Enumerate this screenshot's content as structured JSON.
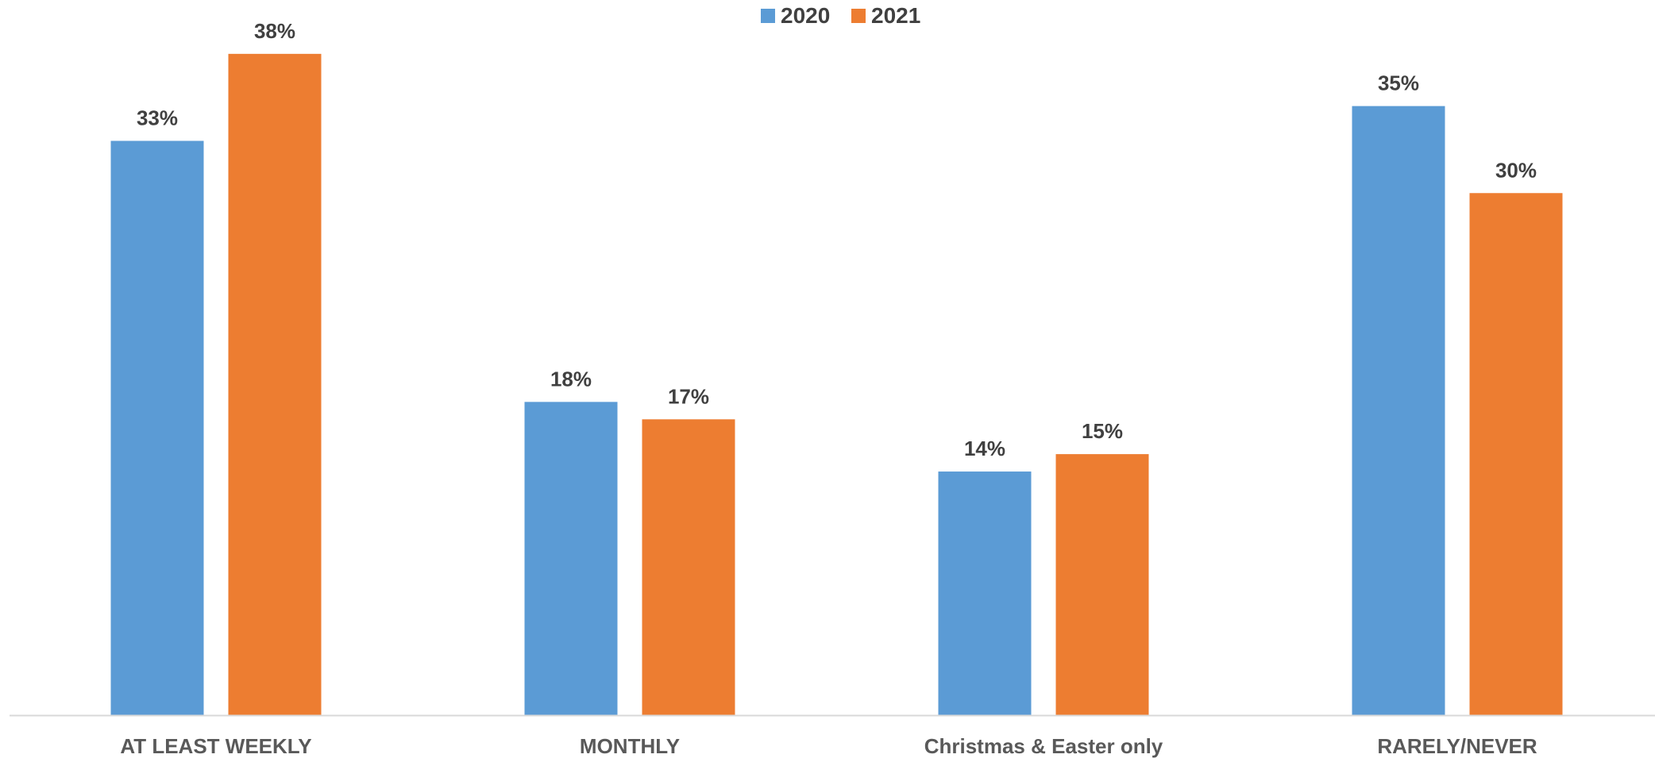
{
  "chart_data": {
    "type": "bar",
    "categories": [
      "AT LEAST WEEKLY",
      "MONTHLY",
      "Christmas & Easter only",
      "RARELY/NEVER"
    ],
    "series": [
      {
        "name": "2020",
        "color": "#5B9BD5",
        "values": [
          33,
          18,
          14,
          35
        ],
        "labels": [
          "33%",
          "18%",
          "14%",
          "35%"
        ]
      },
      {
        "name": "2021",
        "color": "#ED7D31",
        "values": [
          38,
          17,
          15,
          30
        ],
        "labels": [
          "38%",
          "17%",
          "15%",
          "30%"
        ]
      }
    ],
    "ylim": [
      0,
      40
    ],
    "value_unit": "%",
    "grid": false,
    "legend_position": "top-center",
    "axis_color": "#D9D9D9"
  }
}
